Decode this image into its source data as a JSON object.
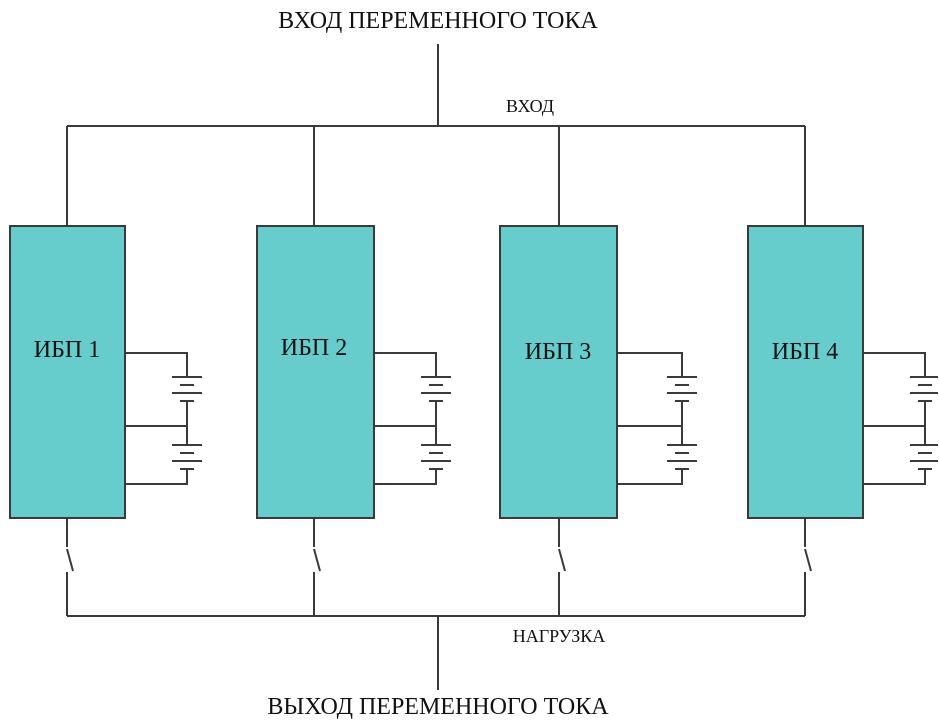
{
  "diagram": {
    "ac_input_label": "ВХОД ПЕРЕМЕННОГО ТОКА",
    "input_bus_label": "ВХОД",
    "load_bus_label": "НАГРУЗКА",
    "ac_output_label": "ВЫХОД ПЕРЕМЕННОГО ТОКА",
    "ups_units": [
      {
        "label": "ИБП 1"
      },
      {
        "label": "ИБП 2"
      },
      {
        "label": "ИБП 3"
      },
      {
        "label": "ИБП 4"
      }
    ],
    "colors": {
      "ups_fill": "#66cccc",
      "line": "#3a3a3a"
    }
  }
}
